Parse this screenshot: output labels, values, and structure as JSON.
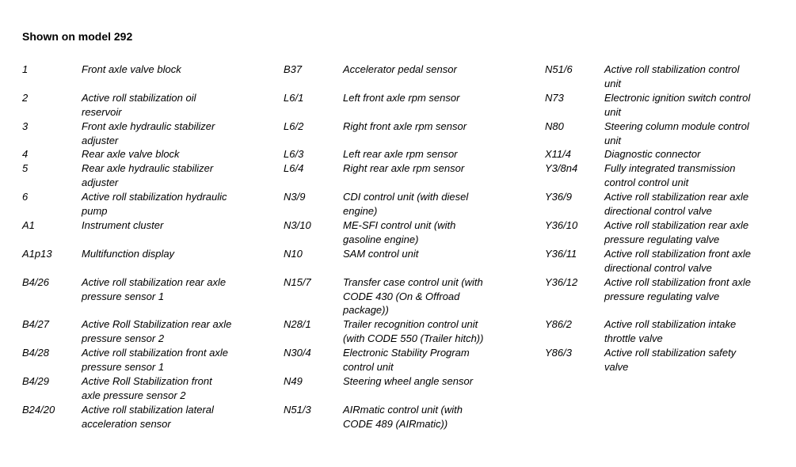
{
  "page": {
    "background_color": "#ffffff",
    "text_color": "#000000",
    "title": "Shown on model 292"
  },
  "legend": {
    "rows": [
      {
        "c1": {
          "code": "1",
          "desc": "Front axle valve block"
        },
        "c2": {
          "code": "B37",
          "desc": "Accelerator pedal sensor"
        },
        "c3": {
          "code": "N51/6",
          "desc": "Active roll stabilization control\nunit"
        }
      },
      {
        "c1": {
          "code": "2",
          "desc": "Active roll stabilization oil\nreservoir"
        },
        "c2": {
          "code": "L6/1",
          "desc": "Left front axle rpm sensor"
        },
        "c3": {
          "code": "N73",
          "desc": "Electronic ignition switch control\nunit"
        }
      },
      {
        "c1": {
          "code": "3",
          "desc": "Front axle hydraulic stabilizer\nadjuster"
        },
        "c2": {
          "code": "L6/2",
          "desc": "Right front axle rpm sensor"
        },
        "c3": {
          "code": "N80",
          "desc": "Steering column module control\nunit"
        }
      },
      {
        "c1": {
          "code": "4",
          "desc": "Rear axle valve block"
        },
        "c2": {
          "code": "L6/3",
          "desc": "Left rear axle rpm sensor"
        },
        "c3": {
          "code": "X11/4",
          "desc": "Diagnostic connector"
        }
      },
      {
        "c1": {
          "code": "5",
          "desc": "Rear axle hydraulic stabilizer\nadjuster"
        },
        "c2": {
          "code": "L6/4",
          "desc": "Right rear axle rpm sensor"
        },
        "c3": {
          "code": "Y3/8n4",
          "desc": "Fully integrated transmission\ncontrol control unit"
        }
      },
      {
        "c1": {
          "code": "6",
          "desc": "Active roll stabilization hydraulic\npump"
        },
        "c2": {
          "code": "N3/9",
          "desc": "CDI control unit (with diesel\nengine)"
        },
        "c3": {
          "code": "Y36/9",
          "desc": "Active roll stabilization rear axle\ndirectional control valve"
        }
      },
      {
        "c1": {
          "code": "A1",
          "desc": "Instrument cluster"
        },
        "c2": {
          "code": "N3/10",
          "desc": "ME-SFI control unit (with\ngasoline engine)"
        },
        "c3": {
          "code": "Y36/10",
          "desc": "Active roll stabilization rear axle\npressure regulating valve"
        }
      },
      {
        "c1": {
          "code": "A1p13",
          "desc": "Multifunction display"
        },
        "c2": {
          "code": "N10",
          "desc": "SAM control unit"
        },
        "c3": {
          "code": "Y36/11",
          "desc": "Active roll stabilization front axle\ndirectional control valve"
        }
      },
      {
        "c1": {
          "code": "B4/26",
          "desc": "Active roll stabilization rear axle\npressure sensor 1"
        },
        "c2": {
          "code": "N15/7",
          "desc": "Transfer case control unit (with\nCODE 430 (On & Offroad\npackage))"
        },
        "c3": {
          "code": "Y36/12",
          "desc": "Active roll stabilization front axle\npressure regulating valve"
        }
      },
      {
        "c1": {
          "code": "B4/27",
          "desc": "Active Roll Stabilization rear axle\npressure sensor 2"
        },
        "c2": {
          "code": "N28/1",
          "desc": "Trailer recognition control unit\n(with CODE 550 (Trailer hitch))"
        },
        "c3": {
          "code": "Y86/2",
          "desc": "Active roll stabilization intake\nthrottle valve"
        }
      },
      {
        "c1": {
          "code": "B4/28",
          "desc": "Active roll stabilization front axle\npressure sensor 1"
        },
        "c2": {
          "code": "N30/4",
          "desc": "Electronic Stability Program\ncontrol unit"
        },
        "c3": {
          "code": "Y86/3",
          "desc": "Active roll stabilization safety\nvalve"
        }
      },
      {
        "c1": {
          "code": "B4/29",
          "desc": "Active Roll Stabilization front\naxle pressure sensor 2"
        },
        "c2": {
          "code": "N49",
          "desc": "Steering wheel angle sensor"
        }
      },
      {
        "c1": {
          "code": "B24/20",
          "desc": "Active roll stabilization lateral\nacceleration sensor"
        },
        "c2": {
          "code": "N51/3",
          "desc": "AIRmatic control unit (with\nCODE 489 (AIRmatic))"
        }
      }
    ]
  }
}
